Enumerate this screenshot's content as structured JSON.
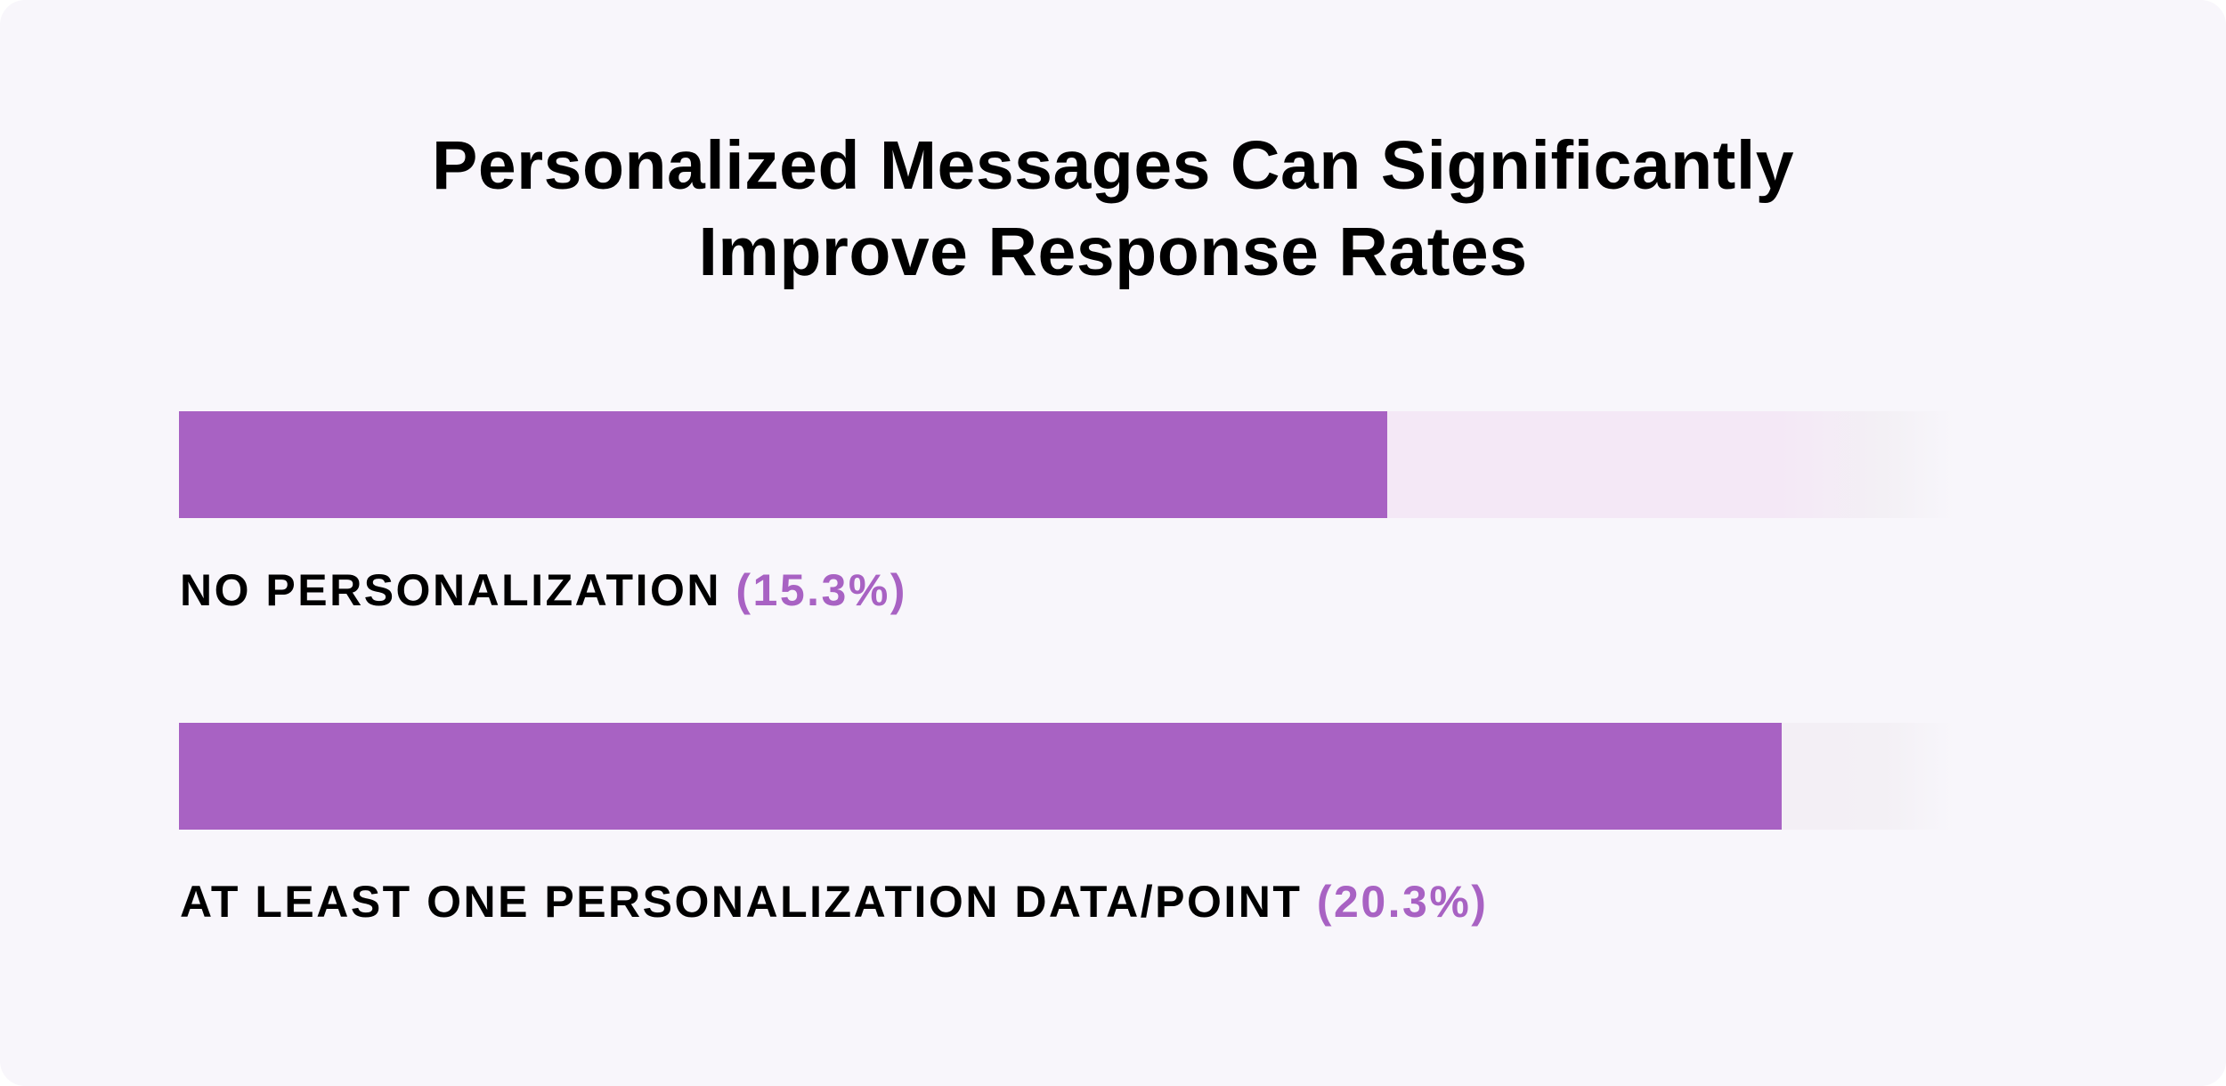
{
  "chart_data": {
    "type": "bar",
    "orientation": "horizontal",
    "title": "Personalized Messages Can Significantly Improve Response Rates",
    "title_lines": [
      "Personalized Messages Can Significantly",
      "Improve Response Rates"
    ],
    "categories": [
      "NO PERSONALIZATION",
      "AT LEAST ONE PERSONALIZATION DATA/POINT"
    ],
    "values": [
      15.3,
      20.3
    ],
    "data_labels": [
      "(15.3%)",
      "(20.3%)"
    ],
    "unit": "%",
    "xlim": [
      0,
      22.5
    ],
    "grid": false,
    "legend": "none",
    "colors": {
      "bar": "#a862c3",
      "track": "#f4e8f6",
      "background": "#f8f6fb",
      "label_value": "#a862c3",
      "text": "#000000"
    }
  }
}
